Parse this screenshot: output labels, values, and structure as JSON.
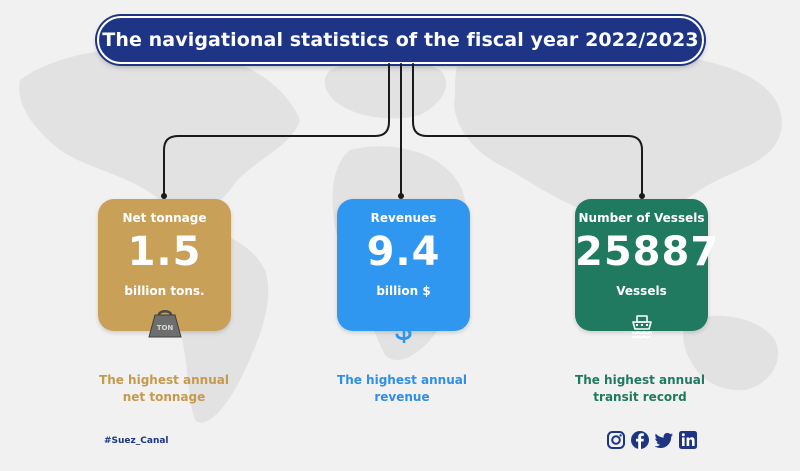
{
  "title": "The navigational statistics of the fiscal year 2022/2023",
  "colors": {
    "navy": "#1e3585",
    "gold": "#c9a057",
    "blue": "#2f97f0",
    "green": "#1f7a60",
    "connector": "#1a1a1a"
  },
  "cards": [
    {
      "label": "Net tonnage",
      "value": "1.5",
      "unit": "billion tons.",
      "icon": "weight-icon",
      "icon_text": "TON",
      "caption_line1": "The highest annual",
      "caption_line2": "net tonnage"
    },
    {
      "label": "Revenues",
      "value": "9.4",
      "unit": "billion $",
      "icon": "dollar-icon",
      "caption_line1": "The highest annual",
      "caption_line2": "revenue"
    },
    {
      "label": "Number of Vessels",
      "value": "25887",
      "unit": "Vessels",
      "icon": "ship-icon",
      "caption_line1": "The highest annual",
      "caption_line2": "transit record"
    }
  ],
  "footer": {
    "hashtag": "#Suez_Canal",
    "social_icons": [
      "instagram-icon",
      "facebook-icon",
      "twitter-icon",
      "linkedin-icon"
    ]
  }
}
